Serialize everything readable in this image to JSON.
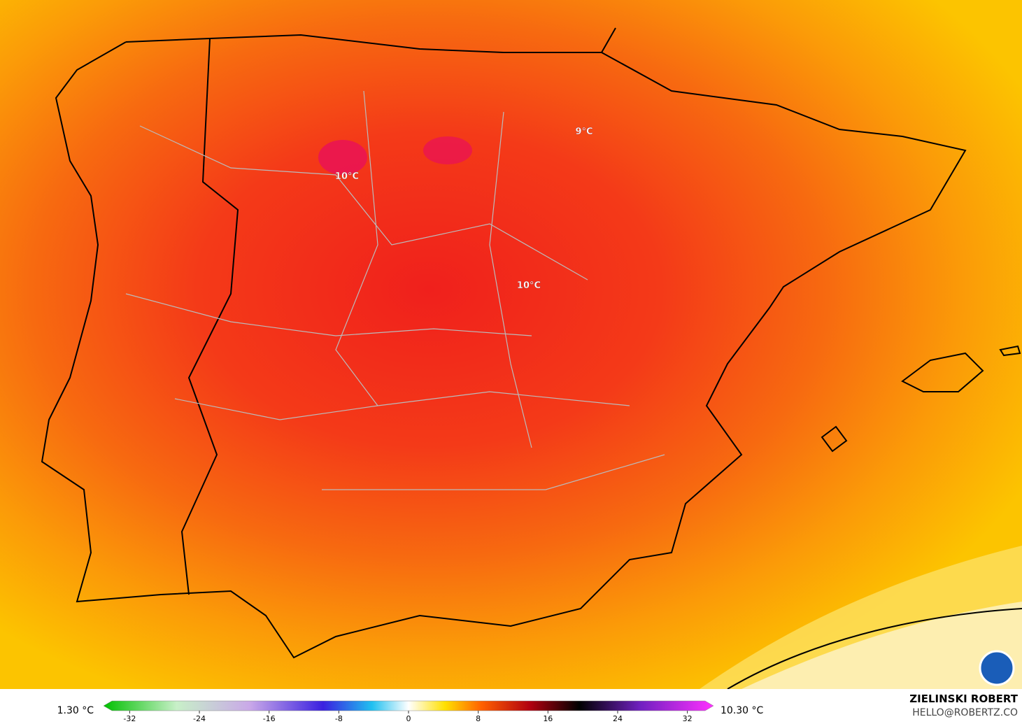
{
  "map": {
    "labels": [
      {
        "text": "10°C"
      },
      {
        "text": "9°C"
      },
      {
        "text": "10°C"
      }
    ]
  },
  "colorbar": {
    "min_label": "1.30 °C",
    "max_label": "10.30 °C",
    "lim": [
      -35,
      35
    ],
    "ticks": [
      -32,
      -24,
      -16,
      -8,
      0,
      8,
      16,
      24,
      32
    ]
  },
  "footer": {
    "author": "ZIELINSKI ROBERT",
    "contact": "HELLO@ROBERTZ.CO"
  }
}
